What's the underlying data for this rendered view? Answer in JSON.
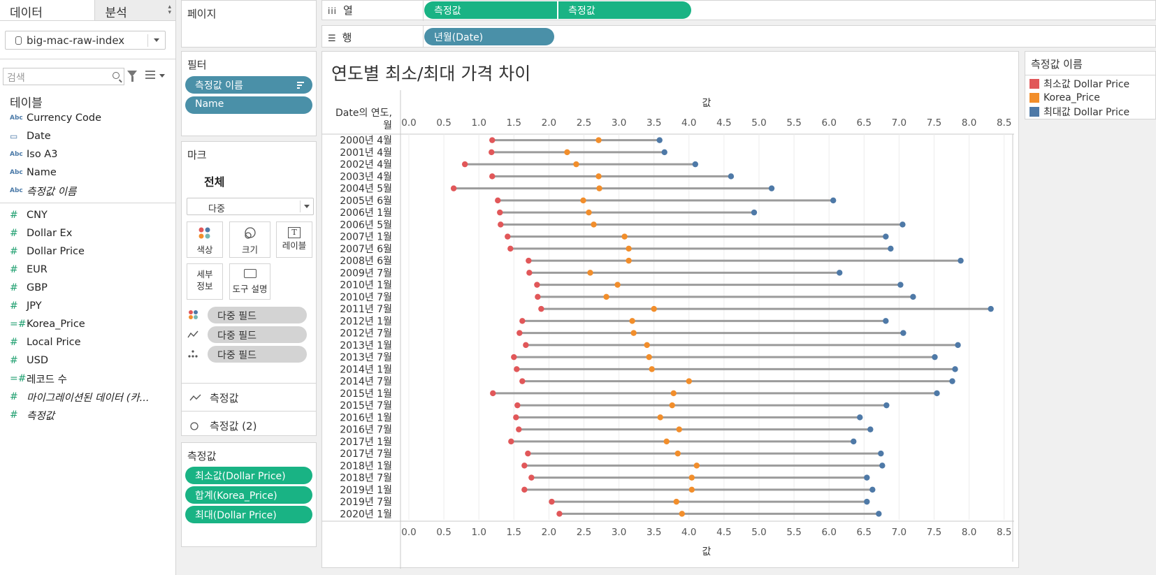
{
  "data_pane": {
    "tab_data": "데이터",
    "tab_analysis": "분석",
    "datasource": "big-mac-raw-index",
    "search_placeholder": "검색",
    "tables_heading": "테이블",
    "dimensions": [
      {
        "icon": "Abc",
        "name": "Currency Code"
      },
      {
        "icon": "date",
        "name": "Date"
      },
      {
        "icon": "Abc",
        "name": "Iso A3"
      },
      {
        "icon": "Abc",
        "name": "Name"
      },
      {
        "icon": "Abc",
        "name": "측정값 이름",
        "italic": true
      }
    ],
    "measures": [
      {
        "icon": "#",
        "name": "CNY"
      },
      {
        "icon": "#",
        "name": "Dollar Ex"
      },
      {
        "icon": "#",
        "name": "Dollar Price"
      },
      {
        "icon": "#",
        "name": "EUR"
      },
      {
        "icon": "#",
        "name": "GBP"
      },
      {
        "icon": "#",
        "name": "JPY"
      },
      {
        "icon": "=#",
        "name": "Korea_Price"
      },
      {
        "icon": "#",
        "name": "Local Price"
      },
      {
        "icon": "#",
        "name": "USD"
      },
      {
        "icon": "=#",
        "name": "레코드 수"
      },
      {
        "icon": "#",
        "name": "마이그레이션된 데이터 (카...",
        "italic": true
      },
      {
        "icon": "#",
        "name": "측정값",
        "italic": true
      }
    ]
  },
  "pages_card": {
    "title": "페이지"
  },
  "filters_card": {
    "title": "필터",
    "pills": [
      "측정값 이름",
      "Name"
    ]
  },
  "marks_card": {
    "title": "마크",
    "all": "전체",
    "mark_type": "다중",
    "buttons": {
      "color": "색상",
      "size": "크기",
      "label": "레이블",
      "detail": "세부\n정보",
      "tooltip": "도구 설명"
    },
    "encodings": [
      "다중 필드",
      "다중 필드",
      "다중 필드"
    ],
    "sub_marks": [
      "측정값",
      "측정값 (2)"
    ]
  },
  "measure_values_card": {
    "title": "측정값",
    "pills": [
      "최소값(Dollar Price)",
      "합계(Korea_Price)",
      "최대(Dollar Price)"
    ]
  },
  "columns_shelf": {
    "label": "열",
    "pills": [
      "측정값",
      "측정값"
    ]
  },
  "rows_shelf": {
    "label": "행",
    "pills": [
      "년월(Date)"
    ]
  },
  "legend": {
    "title": "측정값 이름",
    "items": [
      {
        "name": "최소값 Dollar Price",
        "color": "#e15759"
      },
      {
        "name": "Korea_Price",
        "color": "#f28e2b"
      },
      {
        "name": "최대값 Dollar Price",
        "color": "#4e79a7"
      }
    ]
  },
  "chart_data": {
    "type": "dumbbell",
    "title": "연도별 최소/최대 가격 차이",
    "row_header": "Date의 연도, 월",
    "xlabel": "값",
    "xlim": [
      0,
      8.7
    ],
    "ticks": [
      "0.0",
      "0.5",
      "1.0",
      "1.5",
      "2.0",
      "2.5",
      "3.0",
      "3.5",
      "4.0",
      "4.5",
      "5.0",
      "5.5",
      "6.0",
      "6.5",
      "7.0",
      "7.5",
      "8.0",
      "8.5"
    ],
    "series_names": [
      "최소값 Dollar Price",
      "Korea_Price",
      "최대값 Dollar Price"
    ],
    "rows": [
      {
        "label": "2000년 4월",
        "min": 1.19,
        "korea": 2.71,
        "max": 3.58
      },
      {
        "label": "2001년 4월",
        "min": 1.18,
        "korea": 2.26,
        "max": 3.65
      },
      {
        "label": "2002년 4월",
        "min": 0.8,
        "korea": 2.39,
        "max": 4.09
      },
      {
        "label": "2003년 4월",
        "min": 1.19,
        "korea": 2.71,
        "max": 4.6
      },
      {
        "label": "2004년 5월",
        "min": 0.64,
        "korea": 2.72,
        "max": 5.18
      },
      {
        "label": "2005년 6월",
        "min": 1.27,
        "korea": 2.49,
        "max": 6.06
      },
      {
        "label": "2006년 1월",
        "min": 1.3,
        "korea": 2.57,
        "max": 4.93
      },
      {
        "label": "2006년 5월",
        "min": 1.31,
        "korea": 2.64,
        "max": 7.05
      },
      {
        "label": "2007년 1월",
        "min": 1.41,
        "korea": 3.08,
        "max": 6.81
      },
      {
        "label": "2007년 6월",
        "min": 1.45,
        "korea": 3.14,
        "max": 6.88
      },
      {
        "label": "2008년 6월",
        "min": 1.71,
        "korea": 3.14,
        "max": 7.88
      },
      {
        "label": "2009년 7월",
        "min": 1.72,
        "korea": 2.59,
        "max": 6.15
      },
      {
        "label": "2010년 1월",
        "min": 1.83,
        "korea": 2.98,
        "max": 7.02
      },
      {
        "label": "2010년 7월",
        "min": 1.84,
        "korea": 2.82,
        "max": 7.2
      },
      {
        "label": "2011년 7월",
        "min": 1.89,
        "korea": 3.5,
        "max": 8.31
      },
      {
        "label": "2012년 1월",
        "min": 1.62,
        "korea": 3.19,
        "max": 6.81
      },
      {
        "label": "2012년 7월",
        "min": 1.58,
        "korea": 3.21,
        "max": 7.06
      },
      {
        "label": "2013년 1월",
        "min": 1.67,
        "korea": 3.4,
        "max": 7.84
      },
      {
        "label": "2013년 7월",
        "min": 1.5,
        "korea": 3.43,
        "max": 7.51
      },
      {
        "label": "2014년 1월",
        "min": 1.54,
        "korea": 3.47,
        "max": 7.8
      },
      {
        "label": "2014년 7월",
        "min": 1.62,
        "korea": 4.0,
        "max": 7.76
      },
      {
        "label": "2015년 1월",
        "min": 1.2,
        "korea": 3.78,
        "max": 7.54
      },
      {
        "label": "2015년 7월",
        "min": 1.55,
        "korea": 3.76,
        "max": 6.82
      },
      {
        "label": "2016년 1월",
        "min": 1.53,
        "korea": 3.59,
        "max": 6.44
      },
      {
        "label": "2016년 7월",
        "min": 1.57,
        "korea": 3.86,
        "max": 6.59
      },
      {
        "label": "2017년 1월",
        "min": 1.46,
        "korea": 3.68,
        "max": 6.35
      },
      {
        "label": "2017년 7월",
        "min": 1.7,
        "korea": 3.84,
        "max": 6.74
      },
      {
        "label": "2018년 1월",
        "min": 1.65,
        "korea": 4.11,
        "max": 6.76
      },
      {
        "label": "2018년 7월",
        "min": 1.75,
        "korea": 4.04,
        "max": 6.54
      },
      {
        "label": "2019년 1월",
        "min": 1.65,
        "korea": 4.04,
        "max": 6.62
      },
      {
        "label": "2019년 7월",
        "min": 2.04,
        "korea": 3.82,
        "max": 6.54
      },
      {
        "label": "2020년 1월",
        "min": 2.15,
        "korea": 3.9,
        "max": 6.71
      }
    ],
    "colors": {
      "min": "#e15759",
      "korea": "#f28e2b",
      "max": "#4e79a7",
      "bar": "#9b9b9b"
    }
  }
}
